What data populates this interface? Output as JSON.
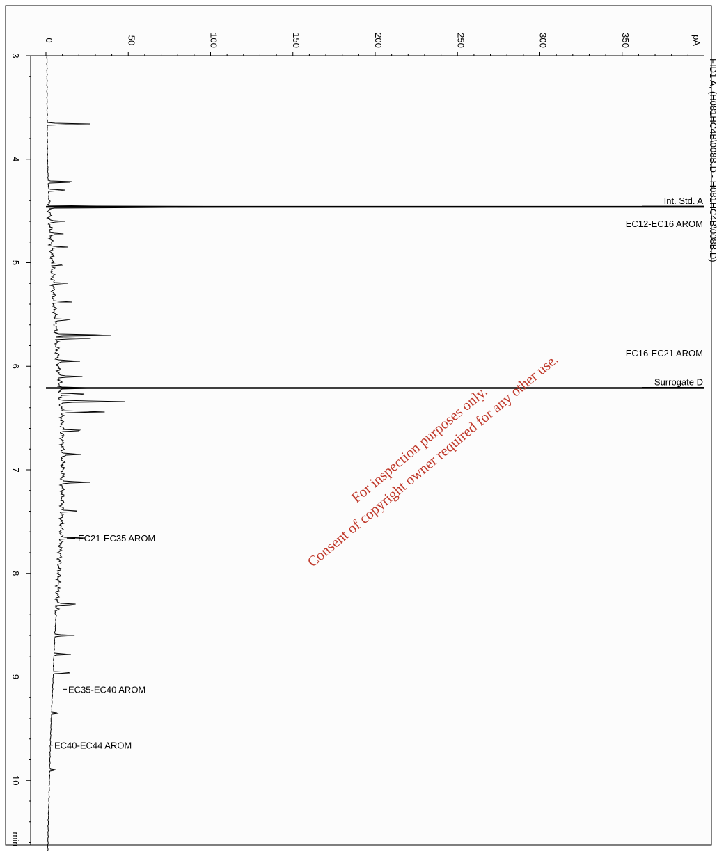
{
  "chart_data": {
    "type": "line",
    "title_rotated": "FID1 A, (H081HC4B\\008B.D - H081HC4B\\008B.D)",
    "x_unit": "min",
    "y_unit": "pA",
    "xlim": [
      3,
      10.75
    ],
    "ylim": [
      0,
      400
    ],
    "x_ticks": [
      3,
      4,
      5,
      6,
      7,
      8,
      9,
      10
    ],
    "y_ticks": [
      0,
      50,
      100,
      150,
      200,
      250,
      300,
      350
    ],
    "tick_labels": {
      "x": [
        "3",
        "4",
        "5",
        "6",
        "7",
        "8",
        "9",
        "10"
      ],
      "y": [
        "0",
        "50",
        "100",
        "150",
        "200",
        "250",
        "300",
        "350"
      ]
    },
    "axis_unit_labels": {
      "x": "min",
      "y": "pA"
    },
    "baseline": [
      [
        3.0,
        0.6
      ],
      [
        3.5,
        0.7
      ],
      [
        4.0,
        0.9
      ],
      [
        4.4,
        1.8
      ],
      [
        4.6,
        2.5
      ],
      [
        4.8,
        3.2
      ],
      [
        5.0,
        3.8
      ],
      [
        5.2,
        4.2
      ],
      [
        5.4,
        5.0
      ],
      [
        5.6,
        5.8
      ],
      [
        5.8,
        6.5
      ],
      [
        6.0,
        7.5
      ],
      [
        6.2,
        8.5
      ],
      [
        6.4,
        9.3
      ],
      [
        6.6,
        9.8
      ],
      [
        6.8,
        10.0
      ],
      [
        7.0,
        10.2
      ],
      [
        7.2,
        10.0
      ],
      [
        7.4,
        9.6
      ],
      [
        7.6,
        9.2
      ],
      [
        7.8,
        8.6
      ],
      [
        8.0,
        7.8
      ],
      [
        8.2,
        7.0
      ],
      [
        8.4,
        6.2
      ],
      [
        8.6,
        5.4
      ],
      [
        8.8,
        4.8
      ],
      [
        9.0,
        4.4
      ],
      [
        9.2,
        3.8
      ],
      [
        9.4,
        3.2
      ],
      [
        9.6,
        2.8
      ],
      [
        9.8,
        2.4
      ],
      [
        10.0,
        2.1
      ],
      [
        10.2,
        1.8
      ],
      [
        10.4,
        1.4
      ],
      [
        10.6,
        1.2
      ],
      [
        10.75,
        1.0
      ]
    ],
    "peaks": [
      {
        "t": 3.66,
        "h": 27
      },
      {
        "t": 4.22,
        "h": 18
      },
      {
        "t": 4.3,
        "h": 12
      },
      {
        "t": 4.46,
        "h": 168
      },
      {
        "t": 4.6,
        "h": 8
      },
      {
        "t": 4.72,
        "h": 7
      },
      {
        "t": 4.85,
        "h": 9
      },
      {
        "t": 5.02,
        "h": 8
      },
      {
        "t": 5.2,
        "h": 9
      },
      {
        "t": 5.38,
        "h": 10
      },
      {
        "t": 5.55,
        "h": 11
      },
      {
        "t": 5.7,
        "h": 38
      },
      {
        "t": 5.73,
        "h": 22
      },
      {
        "t": 5.95,
        "h": 13
      },
      {
        "t": 6.1,
        "h": 14
      },
      {
        "t": 6.21,
        "h": 20
      },
      {
        "t": 6.27,
        "h": 17
      },
      {
        "t": 6.34,
        "h": 40
      },
      {
        "t": 6.44,
        "h": 30
      },
      {
        "t": 6.62,
        "h": 14
      },
      {
        "t": 6.85,
        "h": 12
      },
      {
        "t": 7.12,
        "h": 17
      },
      {
        "t": 7.4,
        "h": 12
      },
      {
        "t": 7.66,
        "h": 16
      },
      {
        "t": 8.3,
        "h": 14
      },
      {
        "t": 8.6,
        "h": 12
      },
      {
        "t": 8.78,
        "h": 11
      },
      {
        "t": 8.96,
        "h": 13
      },
      {
        "t": 9.35,
        "h": 5
      },
      {
        "t": 9.9,
        "h": 4
      }
    ],
    "offscale_peaks": [
      {
        "t": 4.46,
        "label": "Int. Std. A"
      },
      {
        "t": 6.21,
        "label": "Surrogate D"
      }
    ],
    "annotations": [
      {
        "t": 4.62,
        "label": "EC12-EC16 AROM"
      },
      {
        "t": 5.87,
        "label": "EC16-EC21 AROM"
      },
      {
        "t": 7.66,
        "label": "EC21-EC35 AROM"
      },
      {
        "t": 9.12,
        "label": "EC35-EC40 AROM"
      },
      {
        "t": 9.66,
        "label": "EC40-EC44 AROM"
      }
    ]
  },
  "watermark": {
    "line1": "For inspection purposes only.",
    "line2": "Consent of copyright owner required for any other use.",
    "color": "#c0392b"
  }
}
